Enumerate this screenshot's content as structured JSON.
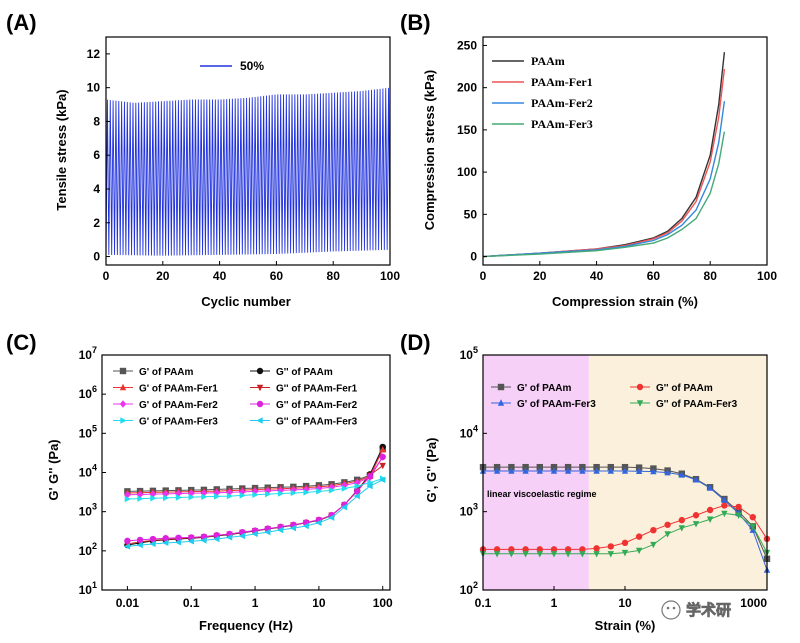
{
  "chart_data": [
    {
      "panel": "(A)",
      "type": "line",
      "xlabel": "Cyclic number",
      "ylabel": "Tensile stress (kPa)",
      "xlim": [
        0,
        100
      ],
      "ylim": [
        -0.5,
        13
      ],
      "xticks": [
        "0",
        "20",
        "40",
        "60",
        "80",
        "100"
      ],
      "yticks": [
        "0",
        "2",
        "4",
        "6",
        "8",
        "10",
        "12"
      ],
      "series": [
        {
          "name": "50%",
          "color": "#2233dd"
        }
      ],
      "cycles": 100,
      "peak_envelope": {
        "x": [
          0,
          10,
          20,
          30,
          40,
          50,
          60,
          70,
          80,
          90,
          100
        ],
        "y": [
          9.3,
          9.1,
          9.2,
          9.3,
          9.3,
          9.4,
          9.6,
          9.6,
          9.7,
          9.8,
          10.0
        ]
      },
      "min_envelope": {
        "x": [
          0,
          20,
          40,
          60,
          80,
          100
        ],
        "y": [
          0.1,
          0.05,
          0.1,
          0.15,
          0.3,
          0.4
        ]
      }
    },
    {
      "panel": "(B)",
      "type": "line",
      "xlabel": "Compression strain (%)",
      "ylabel": "Compression stress (kPa)",
      "xlim": [
        0,
        100
      ],
      "ylim": [
        -10,
        260
      ],
      "xticks": [
        "0",
        "20",
        "40",
        "60",
        "80",
        "100"
      ],
      "yticks": [
        "0",
        "50",
        "100",
        "150",
        "200",
        "250"
      ],
      "legend_position": "top-left",
      "series": [
        {
          "name": "PAAm",
          "color": "#333333",
          "x": [
            0,
            20,
            40,
            50,
            60,
            65,
            70,
            75,
            80,
            83,
            85
          ],
          "y": [
            0,
            4,
            9,
            14,
            22,
            30,
            45,
            70,
            120,
            180,
            242
          ]
        },
        {
          "name": "PAAm-Fer1",
          "color": "#ee5555",
          "x": [
            0,
            20,
            40,
            50,
            60,
            65,
            70,
            75,
            80,
            83,
            85
          ],
          "y": [
            0,
            4,
            9,
            13,
            21,
            28,
            42,
            65,
            112,
            165,
            222
          ]
        },
        {
          "name": "PAAm-Fer2",
          "color": "#3388dd",
          "x": [
            0,
            20,
            40,
            50,
            60,
            65,
            70,
            75,
            80,
            83,
            85
          ],
          "y": [
            0,
            4,
            8,
            12,
            19,
            26,
            37,
            55,
            92,
            135,
            184
          ]
        },
        {
          "name": "PAAm-Fer3",
          "color": "#44aa77",
          "x": [
            0,
            20,
            40,
            50,
            60,
            65,
            70,
            75,
            80,
            83,
            85
          ],
          "y": [
            0,
            3,
            7,
            11,
            16,
            22,
            32,
            45,
            75,
            110,
            148
          ]
        }
      ]
    },
    {
      "panel": "(C)",
      "type": "line",
      "xlabel": "Frequency (Hz)",
      "ylabel": "G' G'' (Pa)",
      "xscale": "log",
      "yscale": "log",
      "xlim": [
        0.004,
        130
      ],
      "ylim": [
        10,
        10000000
      ],
      "xticks": [
        "0.01",
        "0.1",
        "1",
        "10",
        "100"
      ],
      "yticks": [
        "10^1",
        "10^2",
        "10^3",
        "10^4",
        "10^5",
        "10^6",
        "10^7"
      ],
      "legend_position": "top",
      "x": [
        0.01,
        0.0158,
        0.0251,
        0.0398,
        0.0631,
        0.1,
        0.158,
        0.251,
        0.398,
        0.631,
        1,
        1.58,
        2.51,
        3.98,
        6.31,
        10,
        15.8,
        25.1,
        39.8,
        63.1,
        100
      ],
      "series": [
        {
          "name": "G' of PAAm",
          "color": "#555555",
          "marker": "square",
          "y": [
            3300,
            3350,
            3400,
            3450,
            3500,
            3550,
            3600,
            3700,
            3800,
            3900,
            4000,
            4100,
            4200,
            4300,
            4500,
            4700,
            5000,
            5600,
            6500,
            8500,
            40000
          ]
        },
        {
          "name": "G'' of PAAm",
          "color": "#111111",
          "marker": "circle",
          "y": [
            140,
            160,
            180,
            190,
            200,
            210,
            220,
            240,
            260,
            290,
            320,
            360,
            400,
            450,
            520,
            600,
            800,
            1500,
            3500,
            9000,
            45000
          ]
        },
        {
          "name": "G' of PAAm-Fer1",
          "color": "#ee3333",
          "marker": "triangle-up",
          "y": [
            3000,
            3050,
            3100,
            3150,
            3200,
            3250,
            3300,
            3350,
            3450,
            3550,
            3650,
            3750,
            3850,
            3950,
            4100,
            4300,
            4600,
            5200,
            6000,
            8000,
            38000
          ]
        },
        {
          "name": "G'' of PAAm-Fer1",
          "color": "#cc2222",
          "marker": "triangle-down",
          "y": [
            150,
            170,
            185,
            195,
            205,
            215,
            225,
            245,
            265,
            295,
            325,
            365,
            405,
            455,
            525,
            610,
            810,
            1500,
            3400,
            8500,
            15000
          ]
        },
        {
          "name": "G' of PAAm-Fer2",
          "color": "#ee33ee",
          "marker": "diamond",
          "y": [
            2700,
            2750,
            2800,
            2850,
            2900,
            2950,
            3000,
            3050,
            3100,
            3200,
            3300,
            3400,
            3500,
            3600,
            3700,
            3900,
            4200,
            4700,
            5500,
            7500,
            25000
          ]
        },
        {
          "name": "G'' of PAAm-Fer2",
          "color": "#dd22dd",
          "marker": "circle",
          "y": [
            180,
            190,
            200,
            210,
            215,
            220,
            230,
            250,
            270,
            300,
            330,
            370,
            410,
            460,
            530,
            620,
            820,
            1500,
            3300,
            8000,
            25000
          ]
        },
        {
          "name": "G' of PAAm-Fer3",
          "color": "#22ddee",
          "marker": "triangle-right",
          "y": [
            2100,
            2150,
            2200,
            2250,
            2300,
            2350,
            2400,
            2450,
            2500,
            2600,
            2700,
            2800,
            2900,
            3000,
            3100,
            3300,
            3500,
            3900,
            4500,
            5500,
            7000
          ]
        },
        {
          "name": "G'' of PAAm-Fer3",
          "color": "#22ccee",
          "marker": "triangle-left",
          "y": [
            130,
            140,
            150,
            160,
            165,
            175,
            185,
            200,
            220,
            240,
            270,
            300,
            340,
            380,
            430,
            520,
            700,
            1300,
            2500,
            4500,
            6500
          ]
        }
      ]
    },
    {
      "panel": "(D)",
      "type": "line",
      "xlabel": "Strain (%)",
      "ylabel": "G', G'' (Pa)",
      "xscale": "log",
      "yscale": "log",
      "xlim": [
        0.1,
        1000
      ],
      "ylim": [
        100,
        100000
      ],
      "xticks": [
        "0.1",
        "1",
        "10",
        "1000"
      ],
      "yticks": [
        "10^2",
        "10^3",
        "10^4",
        "10^5"
      ],
      "legend_position": "top",
      "regions": [
        {
          "label": "linear viscoelastic regime",
          "x_range": [
            0.1,
            3.1
          ],
          "color": "#f7d0f7"
        },
        {
          "label": "",
          "x_range": [
            3.1,
            1000
          ],
          "color": "#fbf0dc"
        }
      ],
      "x": [
        0.1,
        0.158,
        0.251,
        0.398,
        0.631,
        1,
        1.58,
        2.51,
        3.98,
        6.31,
        10,
        15.8,
        25.1,
        39.8,
        63.1,
        100,
        158,
        251,
        398,
        631,
        1000
      ],
      "series": [
        {
          "name": "G' of PAAm",
          "color": "#555555",
          "marker": "square",
          "y": [
            3700,
            3700,
            3700,
            3700,
            3700,
            3700,
            3700,
            3700,
            3700,
            3700,
            3700,
            3650,
            3550,
            3350,
            3050,
            2600,
            2050,
            1450,
            1000,
            650,
            250
          ]
        },
        {
          "name": "G'' of PAAm",
          "color": "#ee3333",
          "marker": "circle",
          "y": [
            330,
            330,
            330,
            330,
            330,
            330,
            330,
            330,
            340,
            360,
            400,
            480,
            580,
            680,
            780,
            900,
            1050,
            1200,
            1150,
            850,
            450
          ]
        },
        {
          "name": "G' of PAAm-Fer3",
          "color": "#3366dd",
          "marker": "triangle-up",
          "y": [
            3300,
            3300,
            3300,
            3300,
            3300,
            3300,
            3300,
            3300,
            3300,
            3300,
            3300,
            3280,
            3250,
            3150,
            2950,
            2550,
            2000,
            1400,
            950,
            580,
            180
          ]
        },
        {
          "name": "G'' of PAAm-Fer3",
          "color": "#33aa55",
          "marker": "triangle-down",
          "y": [
            290,
            290,
            290,
            290,
            290,
            290,
            290,
            290,
            290,
            290,
            300,
            320,
            380,
            520,
            620,
            700,
            800,
            950,
            900,
            650,
            300
          ]
        }
      ]
    }
  ],
  "watermark": "学术研"
}
